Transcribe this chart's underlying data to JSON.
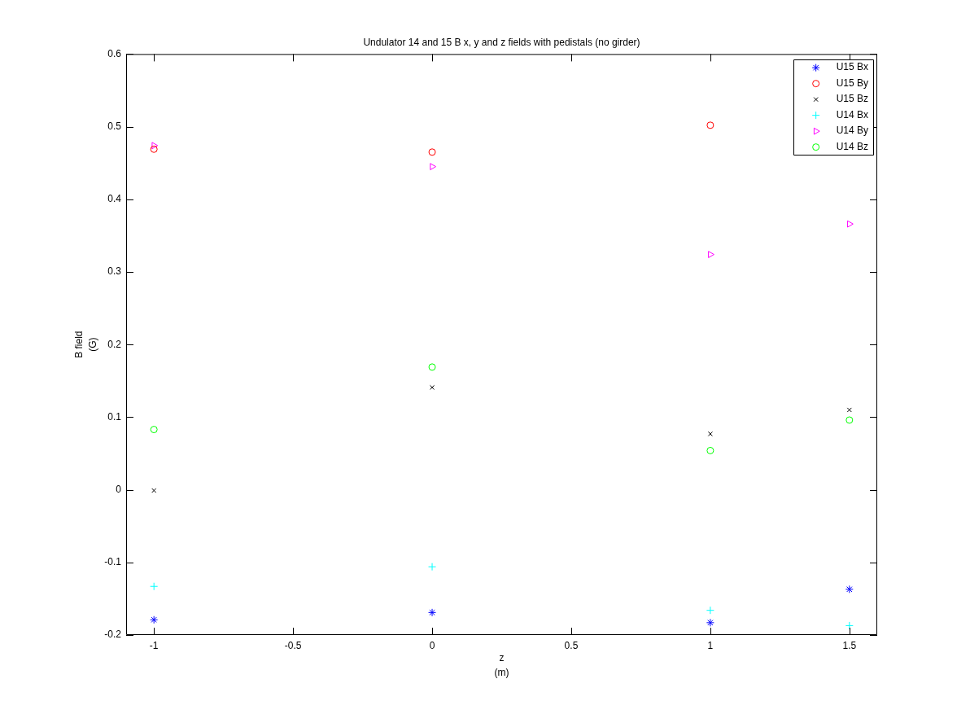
{
  "chart_data": {
    "type": "scatter",
    "title": "Undulator 14 and 15 B x, y and z fields with pedistals (no girder)",
    "xlabel": "z\n(m)",
    "ylabel": "B field\n(G)",
    "x": [
      -1,
      0,
      1,
      1.5
    ],
    "series": [
      {
        "name": "U15 Bx",
        "color": "#0000ff",
        "marker": "cross",
        "values": [
          -0.179,
          -0.169,
          -0.183,
          -0.137
        ]
      },
      {
        "name": "U15 By",
        "color": "#ff0000",
        "marker": "circle",
        "values": [
          0.469,
          0.465,
          0.502,
          null
        ]
      },
      {
        "name": "U15 Bz",
        "color": "#000000",
        "marker": "x",
        "values": [
          -0.001,
          0.141,
          0.077,
          0.11
        ]
      },
      {
        "name": "U14 Bx",
        "color": "#00ffff",
        "marker": "plus",
        "values": [
          -0.133,
          -0.106,
          -0.166,
          -0.187
        ]
      },
      {
        "name": "U14 By",
        "color": "#ff00ff",
        "marker": "triangle",
        "values": [
          0.474,
          0.445,
          0.324,
          0.366
        ]
      },
      {
        "name": "U14 Bz",
        "color": "#00ff00",
        "marker": "circle",
        "values": [
          0.083,
          0.169,
          0.054,
          0.096
        ]
      }
    ],
    "xlim": [
      -1.1,
      1.6
    ],
    "xticks": [
      -1,
      -0.5,
      0,
      0.5,
      1,
      1.5
    ],
    "ylim": [
      -0.2,
      0.6
    ],
    "yticks": [
      -0.2,
      -0.1,
      0,
      0.1,
      0.2,
      0.3,
      0.4,
      0.5,
      0.6
    ],
    "legend": "top right"
  }
}
